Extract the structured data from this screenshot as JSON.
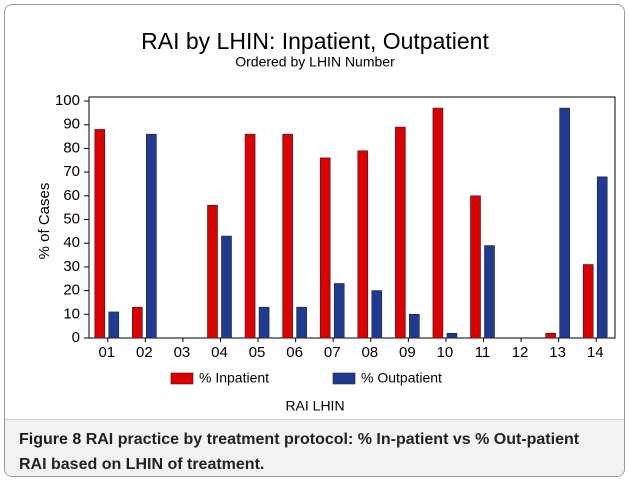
{
  "chart_data": {
    "type": "bar",
    "title": "RAI by LHIN: Inpatient, Outpatient",
    "subtitle": "Ordered by LHIN Number",
    "x_label": "RAI LHIN",
    "y_label": "% of Cases",
    "categories": [
      "01",
      "02",
      "03",
      "04",
      "05",
      "06",
      "07",
      "08",
      "09",
      "10",
      "11",
      "12",
      "13",
      "14"
    ],
    "series": [
      {
        "name": "% Inpatient",
        "color": "#dd0000",
        "values": [
          88,
          13,
          null,
          56,
          86,
          86,
          76,
          79,
          89,
          97,
          60,
          null,
          2,
          31
        ]
      },
      {
        "name": "% Outpatient",
        "color": "#1f3a93",
        "values": [
          11,
          86,
          null,
          43,
          13,
          13,
          23,
          20,
          10,
          2,
          39,
          null,
          97,
          68
        ]
      }
    ],
    "ylim": [
      0,
      100
    ],
    "yticks": [
      0,
      10,
      20,
      30,
      40,
      50,
      60,
      70,
      80,
      90,
      100
    ],
    "grid": false,
    "legend": "bottom"
  },
  "caption": {
    "label": "Figure 8",
    "text": "RAI practice by treatment protocol: % In-patient vs % Out-patient RAI based on LHIN of treatment."
  }
}
